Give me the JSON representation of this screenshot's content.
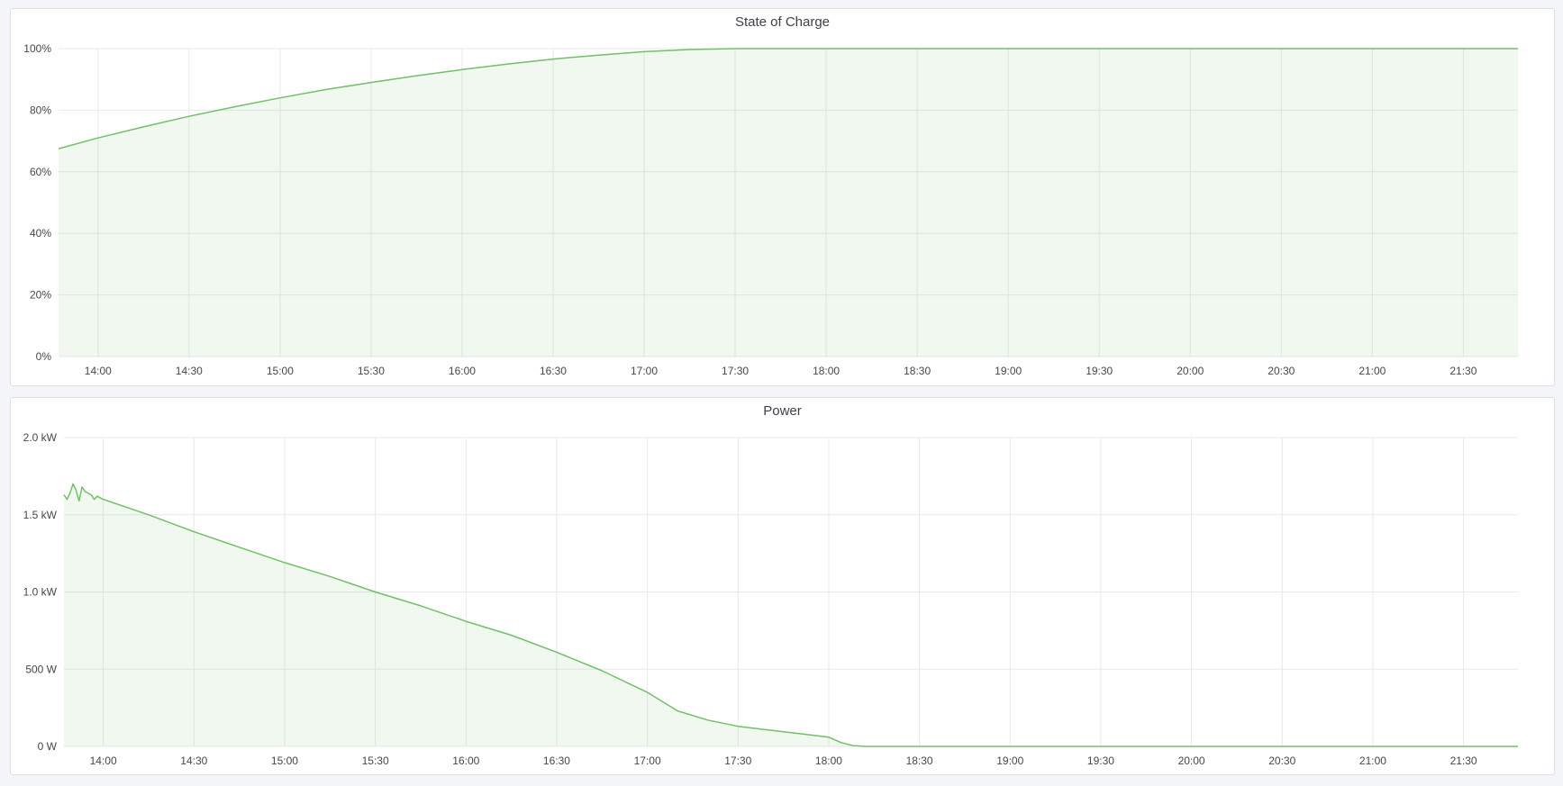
{
  "colors": {
    "line": "#73bf69",
    "fill": "rgba(115,191,105,0.11)",
    "grid": "#e8e9ec"
  },
  "chart_data": [
    {
      "type": "area",
      "title": "State of Charge",
      "xlim": [
        "13:47",
        "21:48"
      ],
      "x_ticks": [
        "14:00",
        "14:30",
        "15:00",
        "15:30",
        "16:00",
        "16:30",
        "17:00",
        "17:30",
        "18:00",
        "18:30",
        "19:00",
        "19:30",
        "20:00",
        "20:30",
        "21:00",
        "21:30"
      ],
      "ylim": [
        0,
        100
      ],
      "y_ticks": [
        0,
        20,
        40,
        60,
        80,
        100
      ],
      "y_tick_labels": [
        "0%",
        "20%",
        "40%",
        "60%",
        "80%",
        "100%"
      ],
      "grid": true,
      "x": [
        "13:47",
        "14:00",
        "14:15",
        "14:30",
        "14:45",
        "15:00",
        "15:15",
        "15:30",
        "15:45",
        "16:00",
        "16:15",
        "16:30",
        "16:45",
        "17:00",
        "17:15",
        "17:30",
        "18:00",
        "19:00",
        "20:00",
        "21:00",
        "21:48"
      ],
      "values": [
        67.5,
        71,
        74.6,
        78,
        81.1,
        84,
        86.7,
        89,
        91.2,
        93.2,
        95,
        96.6,
        97.9,
        99,
        99.7,
        100,
        100,
        100,
        100,
        100,
        100
      ]
    },
    {
      "type": "area",
      "title": "Power",
      "xlim": [
        "13:47",
        "21:48"
      ],
      "x_ticks": [
        "14:00",
        "14:30",
        "15:00",
        "15:30",
        "16:00",
        "16:30",
        "17:00",
        "17:30",
        "18:00",
        "18:30",
        "19:00",
        "19:30",
        "20:00",
        "20:30",
        "21:00",
        "21:30"
      ],
      "ylim": [
        0,
        2000
      ],
      "y_ticks": [
        0,
        500,
        1000,
        1500,
        2000
      ],
      "y_tick_labels": [
        "0 W",
        "500 W",
        "1.0 kW",
        "1.5 kW",
        "2.0 kW"
      ],
      "grid": true,
      "x": [
        "13:47",
        "13:48",
        "13:49",
        "13:50",
        "13:51",
        "13:52",
        "13:53",
        "13:54",
        "13:55",
        "13:56",
        "13:57",
        "13:58",
        "13:59",
        "14:00",
        "14:15",
        "14:30",
        "14:45",
        "15:00",
        "15:15",
        "15:30",
        "15:45",
        "16:00",
        "16:15",
        "16:30",
        "16:45",
        "17:00",
        "17:10",
        "17:20",
        "17:30",
        "17:45",
        "18:00",
        "18:04",
        "18:08",
        "18:12",
        "19:00",
        "20:00",
        "21:00",
        "21:48"
      ],
      "values": [
        1630,
        1600,
        1640,
        1700,
        1660,
        1590,
        1680,
        1650,
        1640,
        1630,
        1600,
        1620,
        1610,
        1600,
        1500,
        1390,
        1290,
        1190,
        1100,
        1000,
        910,
        810,
        720,
        610,
        490,
        350,
        230,
        170,
        130,
        95,
        60,
        25,
        5,
        0,
        0,
        0,
        0,
        0
      ]
    }
  ]
}
